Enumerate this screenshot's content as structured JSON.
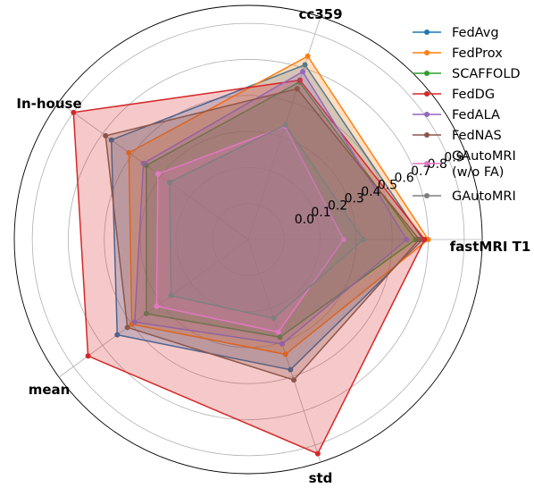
{
  "chart_data": {
    "type": "radar",
    "axes": [
      "fastMRI T1",
      "cc359",
      "In-house",
      "mean",
      "std"
    ],
    "ring_labels": [
      "0.0",
      "0.1",
      "0.2",
      "0.3",
      "0.4",
      "0.5",
      "0.6",
      "0.7",
      "0.8",
      "0.9"
    ],
    "rlim": [
      -0.3,
      1.0
    ],
    "grid": true,
    "legend_position": "top-right",
    "series": [
      {
        "name": "FedAvg",
        "color": "#1f77b4",
        "values": [
          0.67,
          0.72,
          0.64,
          0.6,
          0.46
        ]
      },
      {
        "name": "FedProx",
        "color": "#ff7f0e",
        "values": [
          0.7,
          0.77,
          0.52,
          0.5,
          0.37
        ]
      },
      {
        "name": "SCAFFOLD",
        "color": "#2ca02c",
        "values": [
          0.63,
          0.62,
          0.4,
          0.4,
          0.27
        ]
      },
      {
        "name": "FedDG",
        "color": "#d62728",
        "values": [
          0.68,
          0.63,
          0.9,
          0.8,
          0.95
        ]
      },
      {
        "name": "FedALA",
        "color": "#9467bd",
        "values": [
          0.58,
          0.68,
          0.42,
          0.48,
          0.31
        ]
      },
      {
        "name": "FedNAS",
        "color": "#8c564b",
        "values": [
          0.65,
          0.58,
          0.68,
          0.53,
          0.52
        ]
      },
      {
        "name": "GAutoMRI (w/o FA)",
        "legend_lines": [
          "GAutoMRI",
          "(w/o FA)"
        ],
        "color": "#e377c2",
        "values": [
          0.23,
          0.36,
          0.32,
          0.33,
          0.24
        ]
      },
      {
        "name": "GAutoMRI",
        "color": "#7f7f7f",
        "values": [
          0.34,
          0.37,
          0.24,
          0.23,
          0.16
        ]
      }
    ]
  }
}
